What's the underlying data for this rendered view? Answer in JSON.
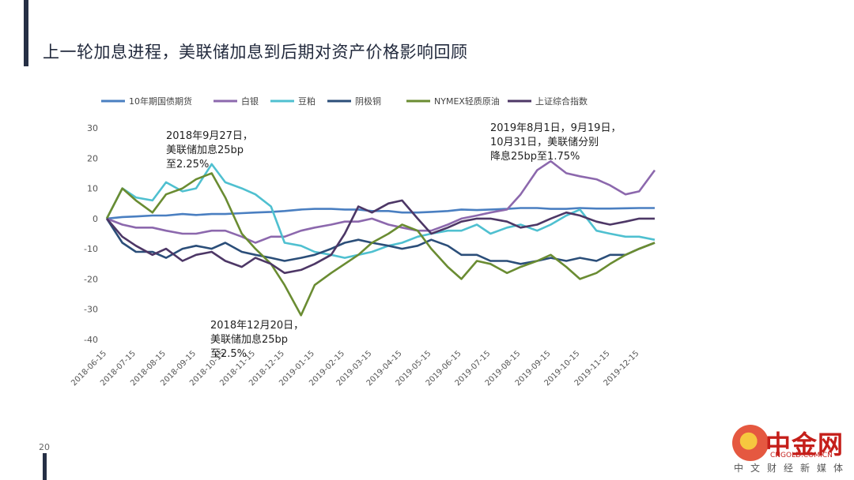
{
  "page": {
    "title": "上一轮加息进程，美联储加息到后期对资产价格影响回顾",
    "page_number": "20"
  },
  "watermark": {
    "name": "中金网",
    "url": "CNGOLD.COM.CN",
    "subtitle": "中文财经新媒体"
  },
  "chart_data": {
    "type": "line",
    "legend_position": "top",
    "grid": false,
    "ylim": [
      -40,
      30
    ],
    "yticks": [
      30,
      20,
      10,
      0,
      -10,
      -20,
      -30,
      -40
    ],
    "xlim": [
      "2018-06-15",
      "2019-12-31"
    ],
    "x_ticks": [
      "2018-06-15",
      "2018-07-15",
      "2018-08-15",
      "2018-09-15",
      "2018-10-15",
      "2018-11-15",
      "2018-12-15",
      "2019-01-15",
      "2019-02-15",
      "2019-03-15",
      "2019-04-15",
      "2019-05-15",
      "2019-06-15",
      "2019-07-15",
      "2019-08-15",
      "2019-09-15",
      "2019-10-15",
      "2019-11-15",
      "2019-12-15"
    ],
    "annotations": [
      {
        "lines": [
          "2018年9月27日，",
          "美联储加息25bp",
          "至2.25%"
        ]
      },
      {
        "lines": [
          "2018年12月20日，",
          "美联储加息25bp",
          "至2.5%"
        ]
      },
      {
        "lines": [
          "2019年8月1日，9月19日，",
          "10月31日，美联储分别",
          "降息25bp至1.75%"
        ]
      }
    ],
    "x": [
      "2018-06-15",
      "2018-07-01",
      "2018-07-15",
      "2018-08-01",
      "2018-08-15",
      "2018-09-01",
      "2018-09-15",
      "2018-10-01",
      "2018-10-15",
      "2018-11-01",
      "2018-11-15",
      "2018-12-01",
      "2018-12-15",
      "2019-01-01",
      "2019-01-15",
      "2019-02-01",
      "2019-02-15",
      "2019-03-01",
      "2019-03-15",
      "2019-04-01",
      "2019-04-15",
      "2019-05-01",
      "2019-05-15",
      "2019-06-01",
      "2019-06-15",
      "2019-07-01",
      "2019-07-15",
      "2019-08-01",
      "2019-08-15",
      "2019-09-01",
      "2019-09-15",
      "2019-10-01",
      "2019-10-15",
      "2019-11-01",
      "2019-11-15",
      "2019-12-01",
      "2019-12-15",
      "2019-12-31"
    ],
    "series": [
      {
        "name": "10年期国债期货",
        "color": "#4a7fc1",
        "values": [
          0,
          0.5,
          0.7,
          1,
          1,
          1.5,
          1.2,
          1.5,
          1.5,
          1.8,
          2,
          2.2,
          2.5,
          3,
          3.2,
          3.2,
          3,
          3,
          2.5,
          2.5,
          2,
          2,
          2.2,
          2.5,
          3,
          2.8,
          3,
          3.2,
          3.5,
          3.5,
          3.2,
          3.2,
          3.5,
          3.3,
          3.3,
          3.4,
          3.5,
          3.5
        ]
      },
      {
        "name": "白银",
        "color": "#8c68ad",
        "values": [
          0,
          -2,
          -3,
          -3,
          -4,
          -5,
          -5,
          -4,
          -4,
          -6,
          -8,
          -6,
          -6,
          -4,
          -3,
          -2,
          -1,
          -1,
          0,
          -2,
          -3,
          -4,
          -4,
          -2,
          0,
          1,
          2,
          3,
          8,
          16,
          19,
          15,
          14,
          13,
          11,
          8,
          9,
          16
        ]
      },
      {
        "name": "豆粕",
        "color": "#4fc0d0",
        "values": [
          0,
          10,
          7,
          6,
          12,
          9,
          10,
          18,
          12,
          10,
          8,
          4,
          -8,
          -9,
          -11,
          -12,
          -13,
          -12,
          -11,
          -9,
          -8,
          -6,
          -5,
          -4,
          -4,
          -2,
          -5,
          -3,
          -2,
          -4,
          -2,
          1,
          3,
          -4,
          -5,
          -6,
          -6,
          -7
        ]
      },
      {
        "name": "阴极铜",
        "color": "#2b4e79",
        "values": [
          0,
          -8,
          -11,
          -11,
          -13,
          -10,
          -9,
          -10,
          -8,
          -11,
          -12,
          -13,
          -14,
          -13,
          -12,
          -10,
          -8,
          -7,
          -8,
          -9,
          -10,
          -9,
          -7,
          -9,
          -12,
          -12,
          -14,
          -14,
          -15,
          -14,
          -13,
          -14,
          -13,
          -14,
          -12,
          -12,
          -10,
          -8
        ]
      },
      {
        "name": "NYMEX轻质原油",
        "color": "#6a8c32",
        "values": [
          0,
          10,
          6,
          2,
          8,
          10,
          13,
          15,
          7,
          -5,
          -10,
          -15,
          -22,
          -32,
          -22,
          -18,
          -15,
          -12,
          -8,
          -5,
          -2,
          -4,
          -10,
          -16,
          -20,
          -14,
          -15,
          -18,
          -16,
          -14,
          -12,
          -16,
          -20,
          -18,
          -15,
          -12,
          -10,
          -8
        ]
      },
      {
        "name": "上证综合指数",
        "color": "#4d3766",
        "values": [
          0,
          -6,
          -9,
          -12,
          -10,
          -14,
          -12,
          -11,
          -14,
          -16,
          -13,
          -15,
          -18,
          -17,
          -15,
          -12,
          -5,
          4,
          2,
          5,
          6,
          0,
          -5,
          -3,
          -1,
          0,
          0,
          -1,
          -3,
          -2,
          0,
          2,
          1,
          -1,
          -2,
          -1,
          0,
          0
        ]
      }
    ]
  }
}
